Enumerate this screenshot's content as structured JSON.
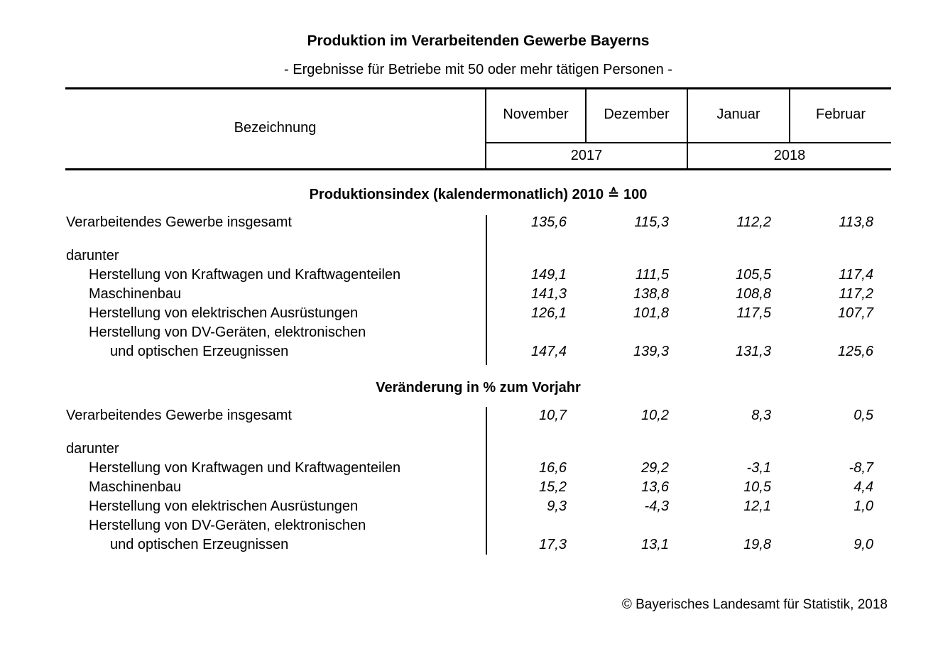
{
  "title": "Produktion im Verarbeitenden Gewerbe Bayerns",
  "subtitle": "- Ergebnisse für Betriebe mit 50 oder mehr tätigen Personen -",
  "colors": {
    "text": "#000000",
    "background": "#ffffff",
    "line": "#000000"
  },
  "table": {
    "label_column_header": "Bezeichnung",
    "month_columns": [
      "November",
      "Dezember",
      "Januar",
      "Februar"
    ],
    "year_groups": [
      {
        "label": "2017",
        "span": [
          "November",
          "Dezember"
        ]
      },
      {
        "label": "2018",
        "span": [
          "Januar",
          "Februar"
        ]
      }
    ],
    "sections": [
      {
        "heading": "Produktionsindex (kalendermonatlich) 2010 ≙ 100",
        "rows": [
          {
            "label": "Verarbeitendes Gewerbe insgesamt",
            "indent": 0,
            "values": [
              "135,6",
              "115,3",
              "112,2",
              "113,8"
            ]
          },
          {
            "label": "darunter",
            "indent": 0,
            "gap_before": true,
            "values": []
          },
          {
            "label": "Herstellung von Kraftwagen und Kraftwagenteilen",
            "indent": 1,
            "values": [
              "149,1",
              "111,5",
              "105,5",
              "117,4"
            ]
          },
          {
            "label": "Maschinenbau",
            "indent": 1,
            "values": [
              "141,3",
              "138,8",
              "108,8",
              "117,2"
            ]
          },
          {
            "label": "Herstellung von elektrischen Ausrüstungen",
            "indent": 1,
            "values": [
              "126,1",
              "101,8",
              "117,5",
              "107,7"
            ]
          },
          {
            "label": "Herstellung von DV-Geräten, elektronischen",
            "indent": 1,
            "values": []
          },
          {
            "label": "und optischen Erzeugnissen",
            "indent": 2,
            "values": [
              "147,4",
              "139,3",
              "131,3",
              "125,6"
            ]
          }
        ]
      },
      {
        "heading": "Veränderung in % zum Vorjahr",
        "rows": [
          {
            "label": "Verarbeitendes Gewerbe insgesamt",
            "indent": 0,
            "values": [
              "10,7",
              "10,2",
              "8,3",
              "0,5"
            ]
          },
          {
            "label": "darunter",
            "indent": 0,
            "gap_before": true,
            "values": []
          },
          {
            "label": "Herstellung von Kraftwagen und Kraftwagenteilen",
            "indent": 1,
            "values": [
              "16,6",
              "29,2",
              "-3,1",
              "-8,7"
            ]
          },
          {
            "label": "Maschinenbau",
            "indent": 1,
            "values": [
              "15,2",
              "13,6",
              "10,5",
              "4,4"
            ]
          },
          {
            "label": "Herstellung von elektrischen Ausrüstungen",
            "indent": 1,
            "values": [
              "9,3",
              "-4,3",
              "12,1",
              "1,0"
            ]
          },
          {
            "label": "Herstellung von DV-Geräten, elektronischen",
            "indent": 1,
            "values": []
          },
          {
            "label": "und optischen Erzeugnissen",
            "indent": 2,
            "values": [
              "17,3",
              "13,1",
              "19,8",
              "9,0"
            ]
          }
        ]
      }
    ]
  },
  "footer": "© Bayerisches Landesamt für Statistik, 2018"
}
